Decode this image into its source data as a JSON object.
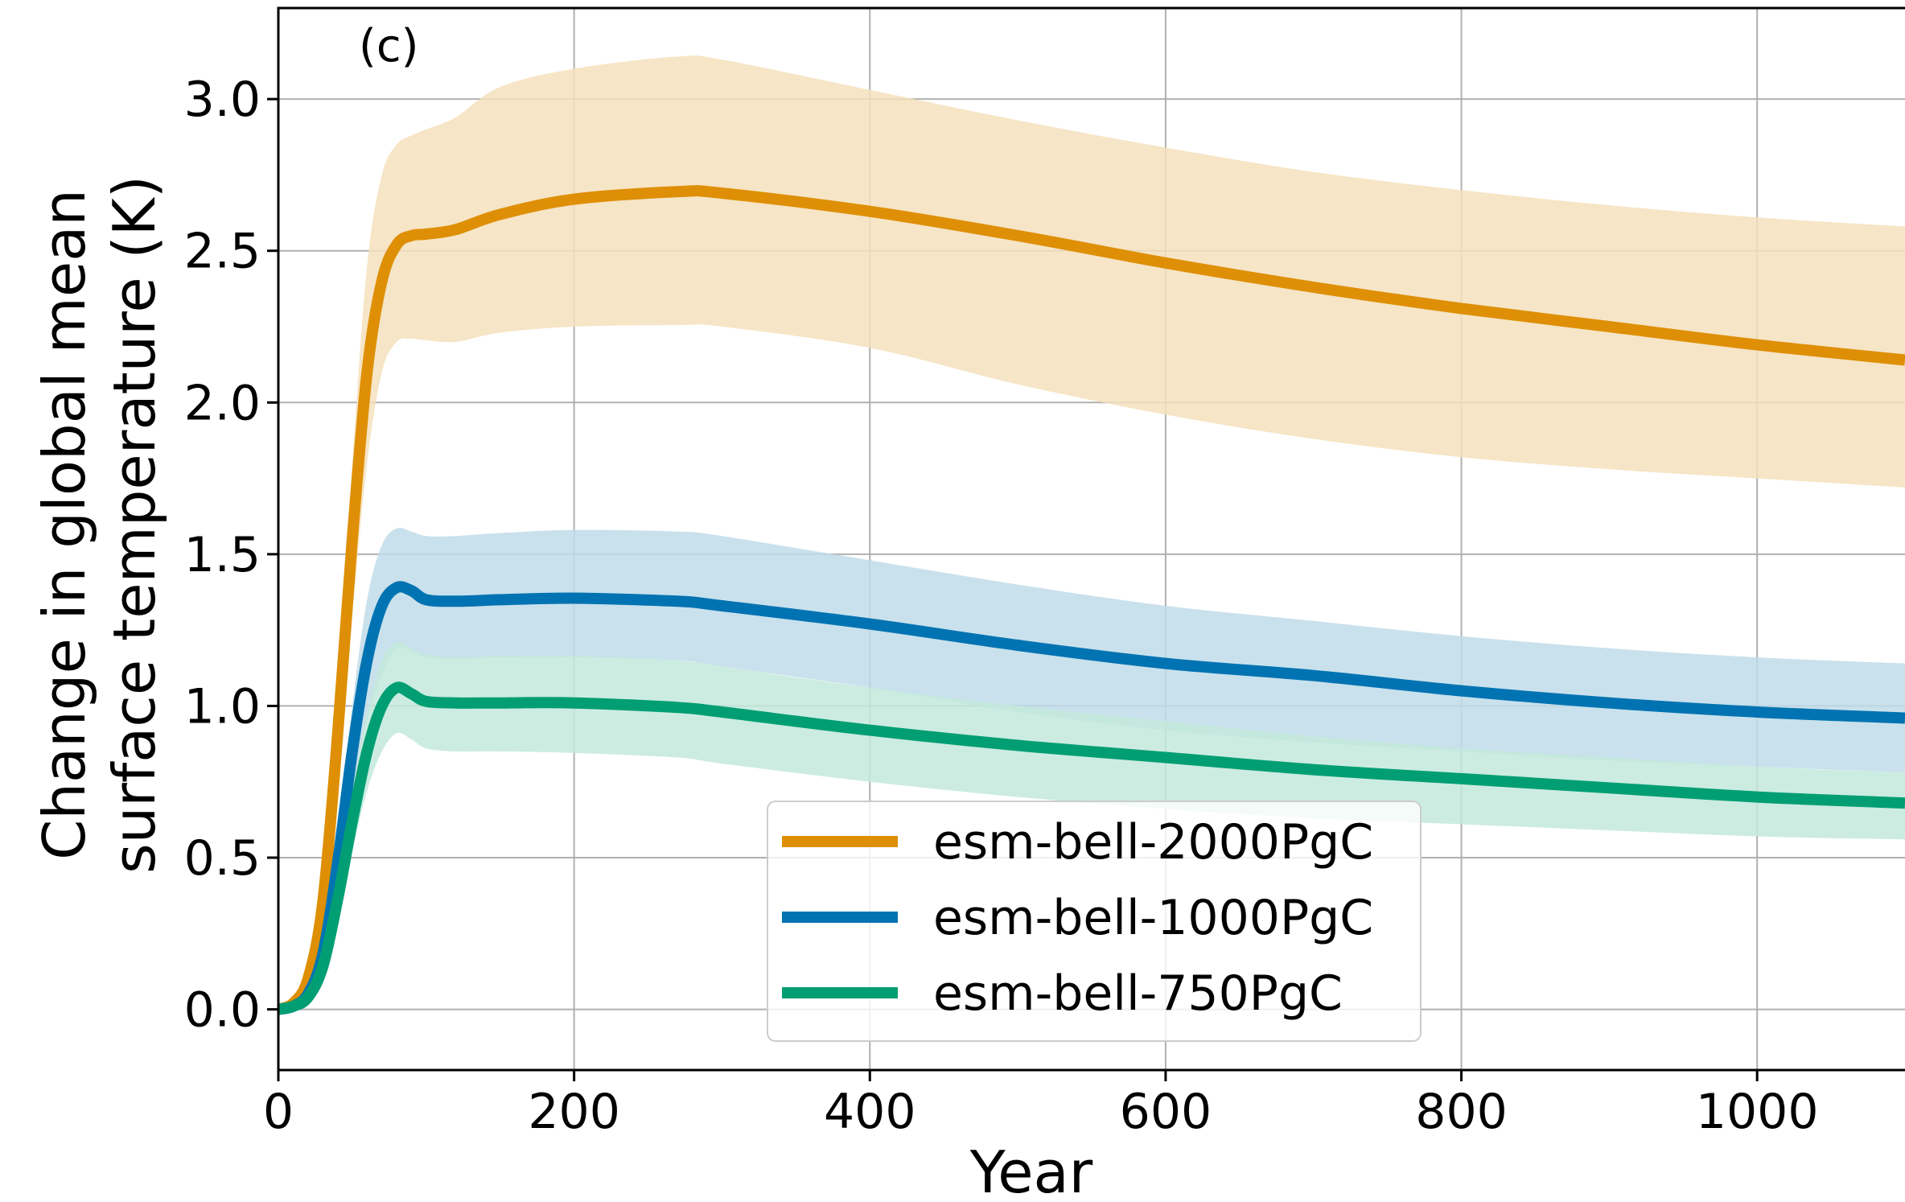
{
  "chart_data": {
    "type": "line",
    "panel_label": "(c)",
    "title": "",
    "xlabel": "Year",
    "ylabel_line1": "Change in global mean",
    "ylabel_line2": "surface temperature (K)",
    "xlim": [
      0,
      1100
    ],
    "ylim": [
      -0.2,
      3.3
    ],
    "x_ticks": [
      0,
      200,
      400,
      600,
      800,
      1000
    ],
    "x_tick_labels": [
      "0",
      "200",
      "400",
      "600",
      "800",
      "1000"
    ],
    "y_ticks": [
      0.0,
      0.5,
      1.0,
      1.5,
      2.0,
      2.5,
      3.0
    ],
    "y_tick_labels": [
      "0.0",
      "0.5",
      "1.0",
      "1.5",
      "2.0",
      "2.5",
      "3.0"
    ],
    "grid": true,
    "legend_position": "lower-center",
    "x": [
      0,
      10,
      20,
      30,
      40,
      50,
      60,
      70,
      80,
      90,
      100,
      120,
      150,
      200,
      270,
      300,
      400,
      500,
      600,
      700,
      800,
      900,
      1000,
      1100
    ],
    "series": [
      {
        "name": "esm-bell-2000PgC",
        "color": "#de8f05",
        "band_color": "#f5e1bc",
        "values": [
          0.0,
          0.02,
          0.1,
          0.35,
          0.9,
          1.55,
          2.1,
          2.4,
          2.52,
          2.55,
          2.555,
          2.57,
          2.62,
          2.67,
          2.695,
          2.69,
          2.63,
          2.55,
          2.46,
          2.38,
          2.31,
          2.25,
          2.19,
          2.14
        ],
        "lower": [
          0.0,
          0.02,
          0.08,
          0.3,
          0.75,
          1.3,
          1.8,
          2.1,
          2.2,
          2.21,
          2.205,
          2.2,
          2.23,
          2.25,
          2.255,
          2.25,
          2.18,
          2.06,
          1.96,
          1.88,
          1.82,
          1.78,
          1.75,
          1.72
        ],
        "upper": [
          0.0,
          0.02,
          0.12,
          0.4,
          1.05,
          1.8,
          2.45,
          2.75,
          2.85,
          2.88,
          2.9,
          2.94,
          3.04,
          3.1,
          3.14,
          3.13,
          3.03,
          2.93,
          2.84,
          2.76,
          2.7,
          2.65,
          2.61,
          2.58
        ]
      },
      {
        "name": "esm-bell-1000PgC",
        "color": "#0173b2",
        "band_color": "#c0dce9",
        "values": [
          0.0,
          0.01,
          0.05,
          0.18,
          0.48,
          0.85,
          1.15,
          1.33,
          1.39,
          1.38,
          1.35,
          1.345,
          1.35,
          1.355,
          1.345,
          1.33,
          1.27,
          1.2,
          1.14,
          1.1,
          1.05,
          1.01,
          0.98,
          0.96
        ],
        "lower": [
          0.0,
          0.01,
          0.04,
          0.14,
          0.4,
          0.7,
          0.95,
          1.1,
          1.19,
          1.18,
          1.16,
          1.155,
          1.16,
          1.16,
          1.15,
          1.13,
          1.06,
          0.98,
          0.92,
          0.88,
          0.85,
          0.82,
          0.8,
          0.78
        ],
        "upper": [
          0.0,
          0.01,
          0.06,
          0.22,
          0.56,
          1.0,
          1.35,
          1.53,
          1.585,
          1.575,
          1.56,
          1.56,
          1.57,
          1.58,
          1.575,
          1.56,
          1.48,
          1.4,
          1.33,
          1.28,
          1.23,
          1.19,
          1.16,
          1.14
        ]
      },
      {
        "name": "esm-bell-750PgC",
        "color": "#029e73",
        "band_color": "#c3e9dc",
        "values": [
          0.0,
          0.01,
          0.04,
          0.14,
          0.36,
          0.62,
          0.85,
          1.0,
          1.06,
          1.04,
          1.015,
          1.01,
          1.01,
          1.01,
          0.995,
          0.98,
          0.92,
          0.87,
          0.83,
          0.79,
          0.76,
          0.73,
          0.7,
          0.68
        ],
        "lower": [
          0.0,
          0.01,
          0.03,
          0.1,
          0.3,
          0.52,
          0.72,
          0.85,
          0.91,
          0.89,
          0.86,
          0.85,
          0.85,
          0.845,
          0.83,
          0.81,
          0.75,
          0.7,
          0.66,
          0.63,
          0.61,
          0.59,
          0.57,
          0.56
        ],
        "upper": [
          0.0,
          0.01,
          0.05,
          0.17,
          0.42,
          0.72,
          0.98,
          1.15,
          1.21,
          1.19,
          1.17,
          1.16,
          1.165,
          1.165,
          1.15,
          1.13,
          1.06,
          1.0,
          0.95,
          0.9,
          0.86,
          0.83,
          0.8,
          0.78
        ]
      }
    ]
  }
}
